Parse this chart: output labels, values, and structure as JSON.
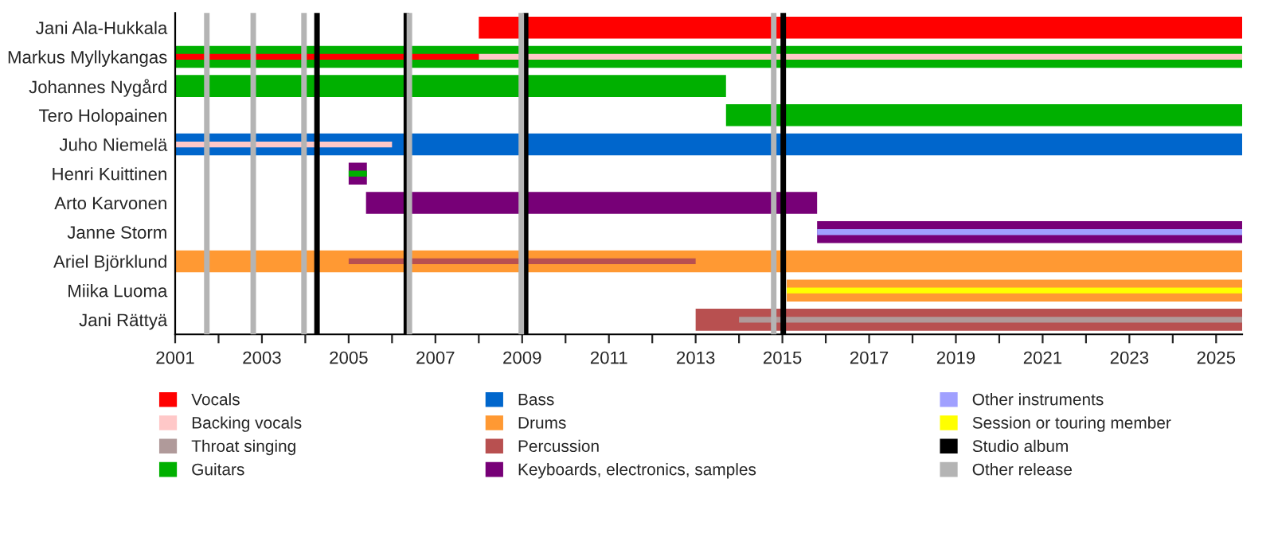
{
  "chart_data": {
    "type": "bar",
    "orientation": "horizontal",
    "categories": [
      "Jani Ala-Hukkala",
      "Markus Myllykangas",
      "Johannes Nygård",
      "Tero Holopainen",
      "Juho Niemelä",
      "Henri Kuittinen",
      "Arto Karvonen",
      "Janne Storm",
      "Ariel Björklund",
      "Miika Luoma",
      "Jani Rättyä"
    ],
    "xlim": [
      2001,
      2025.6
    ],
    "xticks": [
      2001,
      {
        "value": 2002,
        "label": null
      },
      2003,
      {
        "value": 2004,
        "label": null
      },
      2005,
      {
        "value": 2006,
        "label": null
      },
      2007,
      {
        "value": 2008,
        "label": null
      },
      2009,
      {
        "value": 2010,
        "label": null
      },
      2011,
      {
        "value": 2012,
        "label": null
      },
      2013,
      {
        "value": 2014,
        "label": null
      },
      2015,
      {
        "value": 2016,
        "label": null
      },
      2017,
      {
        "value": 2018,
        "label": null
      },
      2019,
      {
        "value": 2020,
        "label": null
      },
      2021,
      {
        "value": 2022,
        "label": null
      },
      2023,
      {
        "value": 2024,
        "label": null
      },
      2025
    ],
    "series": [
      {
        "name": "Vocals",
        "color": "#ff0000",
        "base": [
          2008,
          null,
          null,
          null,
          null,
          null,
          null,
          null,
          null,
          null,
          null
        ],
        "values": [
          17.6,
          null,
          null,
          null,
          null,
          null,
          null,
          null,
          null,
          null,
          null
        ]
      },
      {
        "name": "Backing vocals",
        "color": "#ffc8c8",
        "base": [
          null,
          2008,
          null,
          null,
          2001,
          null,
          null,
          null,
          null,
          null,
          null
        ],
        "values": [
          null,
          17.6,
          null,
          null,
          5.0,
          null,
          null,
          null,
          null,
          null,
          null
        ]
      },
      {
        "name": "Throat singing",
        "color": "#b09a9a",
        "base": [
          null,
          null,
          null,
          null,
          null,
          null,
          null,
          null,
          null,
          null,
          2014
        ],
        "values": [
          null,
          null,
          null,
          null,
          null,
          null,
          null,
          null,
          null,
          null,
          11.6
        ]
      },
      {
        "name": "Guitars",
        "color": "#00b000",
        "base": [
          null,
          2001,
          2001,
          2013.7,
          null,
          null,
          null,
          null,
          null,
          null,
          null
        ],
        "values": [
          null,
          24.6,
          12.7,
          11.9,
          null,
          null,
          null,
          null,
          null,
          null,
          null
        ]
      },
      {
        "name": "Bass",
        "color": "#0066cc",
        "base": [
          null,
          null,
          null,
          null,
          2001,
          null,
          null,
          null,
          null,
          null,
          null
        ],
        "values": [
          null,
          null,
          null,
          null,
          24.6,
          null,
          null,
          null,
          null,
          null,
          null
        ]
      },
      {
        "name": "Drums",
        "color": "#ff9933",
        "base": [
          null,
          null,
          null,
          null,
          null,
          null,
          null,
          null,
          2001,
          2015.1,
          null
        ],
        "values": [
          null,
          null,
          null,
          null,
          null,
          null,
          null,
          null,
          24.6,
          10.5,
          null
        ]
      },
      {
        "name": "Percussion",
        "color": "#b85050",
        "base": [
          null,
          null,
          null,
          null,
          null,
          null,
          null,
          null,
          null,
          null,
          2013
        ],
        "values": [
          null,
          null,
          null,
          null,
          null,
          null,
          null,
          null,
          null,
          null,
          12.6
        ]
      },
      {
        "name": "Keyboards, electronics, samples",
        "color": "#770077",
        "base": [
          null,
          null,
          null,
          null,
          null,
          2005,
          2005.4,
          2015.8,
          null,
          null,
          null
        ],
        "values": [
          null,
          null,
          null,
          null,
          null,
          0.42,
          10.4,
          9.8,
          null,
          null,
          null
        ]
      },
      {
        "name": "Other instruments",
        "color": "#a0a0ff",
        "base": [
          null,
          null,
          null,
          null,
          null,
          null,
          null,
          2015.8,
          null,
          null,
          null
        ],
        "values": [
          null,
          null,
          null,
          null,
          null,
          null,
          null,
          9.8,
          null,
          null,
          null
        ]
      },
      {
        "name": "Session or touring member",
        "color": "#ffff00",
        "base": [
          null,
          null,
          null,
          null,
          null,
          null,
          null,
          null,
          null,
          2015.1,
          null
        ],
        "values": [
          null,
          null,
          null,
          null,
          null,
          null,
          null,
          null,
          null,
          10.5,
          null
        ]
      },
      {
        "color": "#ff0000",
        "base": [
          null,
          2001,
          null,
          null,
          null,
          null,
          null,
          null,
          null,
          null,
          null
        ],
        "values": [
          null,
          7.0,
          null,
          null,
          null,
          null,
          null,
          null,
          null,
          null,
          null
        ]
      },
      {
        "color": "#00b000",
        "base": [
          null,
          null,
          null,
          null,
          null,
          2005,
          null,
          null,
          null,
          null,
          null
        ],
        "values": [
          null,
          null,
          null,
          null,
          null,
          0.42,
          null,
          null,
          null,
          null,
          null
        ]
      },
      {
        "color": "#b85050",
        "base": [
          null,
          null,
          null,
          null,
          null,
          null,
          null,
          null,
          2005,
          null,
          null
        ],
        "values": [
          null,
          null,
          null,
          null,
          null,
          null,
          null,
          null,
          8.0,
          null,
          null
        ]
      }
    ],
    "ref_lines": [
      {
        "axis": "x",
        "value": 2004.27,
        "label": "Studio album",
        "color": "#000000"
      },
      {
        "axis": "x",
        "value": 2006.33,
        "color": "#000000"
      },
      {
        "axis": "x",
        "value": 2009.08,
        "color": "#000000"
      },
      {
        "axis": "x",
        "value": 2015.02,
        "color": "#000000"
      },
      {
        "axis": "x",
        "value": 2001.73,
        "label": "Other release",
        "color": "#b4b4b4"
      },
      {
        "axis": "x",
        "value": 2002.8,
        "color": "#b4b4b4"
      },
      {
        "axis": "x",
        "value": 2003.97,
        "color": "#b4b4b4"
      },
      {
        "axis": "x",
        "value": 2006.4,
        "color": "#b4b4b4"
      },
      {
        "axis": "x",
        "value": 2008.98,
        "color": "#b4b4b4"
      },
      {
        "axis": "x",
        "value": 2014.8,
        "color": "#b4b4b4"
      }
    ],
    "grid": false,
    "legend": "bottom"
  }
}
